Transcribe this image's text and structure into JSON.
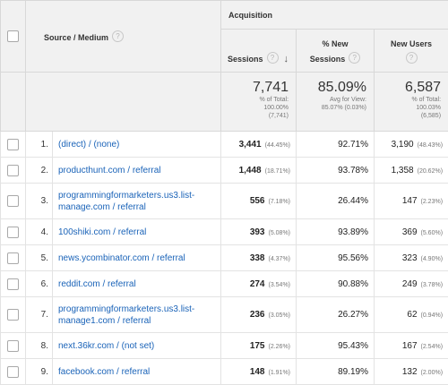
{
  "header": {
    "source_medium": "Source / Medium",
    "acquisition": "Acquisition",
    "sessions": "Sessions",
    "new_sessions_line1": "% New",
    "new_sessions_line2": "Sessions",
    "new_users": "New Users",
    "help_glyph": "?",
    "sort_arrow": "↓"
  },
  "totals": {
    "sessions": {
      "value": "7,741",
      "line1": "% of Total:",
      "line2": "100.00%",
      "line3": "(7,741)"
    },
    "new_sessions": {
      "value": "85.09%",
      "line1": "Avg for View:",
      "line2": "85.07% (0.03%)"
    },
    "new_users": {
      "value": "6,587",
      "line1": "% of Total:",
      "line2": "100.03%",
      "line3": "(6,585)"
    }
  },
  "rows": [
    {
      "rank": "1.",
      "source_line1": "(direct) / (none)",
      "source_line2": "",
      "sessions": "3,441",
      "sessions_pct": "(44.45%)",
      "new_sessions": "92.71%",
      "new_users": "3,190",
      "new_users_pct": "(48.43%)"
    },
    {
      "rank": "2.",
      "source_line1": "producthunt.com / referral",
      "source_line2": "",
      "sessions": "1,448",
      "sessions_pct": "(18.71%)",
      "new_sessions": "93.78%",
      "new_users": "1,358",
      "new_users_pct": "(20.62%)"
    },
    {
      "rank": "3.",
      "source_line1": "programmingformarketers.us3.list-",
      "source_line2": "manage.com / referral",
      "sessions": "556",
      "sessions_pct": "(7.18%)",
      "new_sessions": "26.44%",
      "new_users": "147",
      "new_users_pct": "(2.23%)"
    },
    {
      "rank": "4.",
      "source_line1": "100shiki.com / referral",
      "source_line2": "",
      "sessions": "393",
      "sessions_pct": "(5.08%)",
      "new_sessions": "93.89%",
      "new_users": "369",
      "new_users_pct": "(5.60%)"
    },
    {
      "rank": "5.",
      "source_line1": "news.ycombinator.com / referral",
      "source_line2": "",
      "sessions": "338",
      "sessions_pct": "(4.37%)",
      "new_sessions": "95.56%",
      "new_users": "323",
      "new_users_pct": "(4.90%)"
    },
    {
      "rank": "6.",
      "source_line1": "reddit.com / referral",
      "source_line2": "",
      "sessions": "274",
      "sessions_pct": "(3.54%)",
      "new_sessions": "90.88%",
      "new_users": "249",
      "new_users_pct": "(3.78%)"
    },
    {
      "rank": "7.",
      "source_line1": "programmingformarketers.us3.list-",
      "source_line2": "manage1.com / referral",
      "sessions": "236",
      "sessions_pct": "(3.05%)",
      "new_sessions": "26.27%",
      "new_users": "62",
      "new_users_pct": "(0.94%)"
    },
    {
      "rank": "8.",
      "source_line1": "next.36kr.com / (not set)",
      "source_line2": "",
      "sessions": "175",
      "sessions_pct": "(2.26%)",
      "new_sessions": "95.43%",
      "new_users": "167",
      "new_users_pct": "(2.54%)"
    },
    {
      "rank": "9.",
      "source_line1": "facebook.com / referral",
      "source_line2": "",
      "sessions": "148",
      "sessions_pct": "(1.91%)",
      "new_sessions": "89.19%",
      "new_users": "132",
      "new_users_pct": "(2.00%)"
    }
  ]
}
